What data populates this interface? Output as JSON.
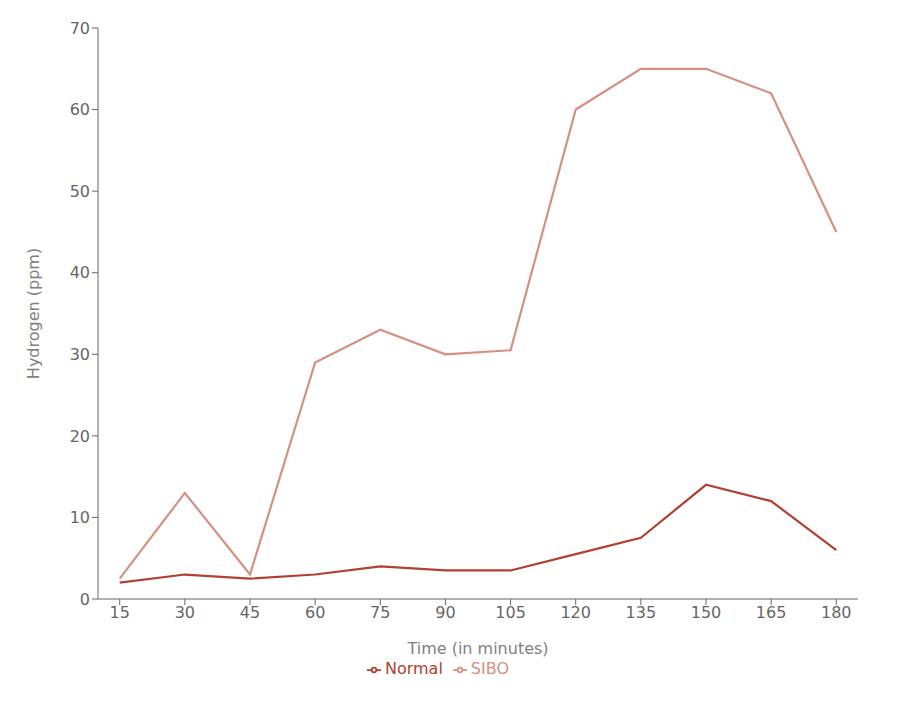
{
  "chart_data": {
    "type": "line",
    "xlabel": "Time (in minutes)",
    "ylabel": "Hydrogen (ppm)",
    "x": [
      15,
      30,
      45,
      60,
      75,
      90,
      105,
      120,
      135,
      150,
      165,
      180
    ],
    "series": [
      {
        "name": "Normal",
        "color": "#b04030",
        "values": [
          2.0,
          3.0,
          2.5,
          3.0,
          4.0,
          3.5,
          3.5,
          5.5,
          7.5,
          14.0,
          12.0,
          6.0
        ]
      },
      {
        "name": "SIBO",
        "color": "#d49080",
        "values": [
          2.5,
          13.0,
          3.0,
          29.0,
          33.0,
          30.0,
          30.5,
          60.0,
          65.0,
          65.0,
          62.0,
          45.0
        ]
      }
    ],
    "xlim": [
      10,
      185
    ],
    "xticks": [
      15,
      30,
      45,
      60,
      75,
      90,
      105,
      120,
      135,
      150,
      165,
      180
    ],
    "ylim": [
      0,
      70
    ],
    "yticks": [
      0,
      10,
      20,
      30,
      40,
      50,
      60,
      70
    ],
    "grid": false,
    "legend": "bottom"
  }
}
